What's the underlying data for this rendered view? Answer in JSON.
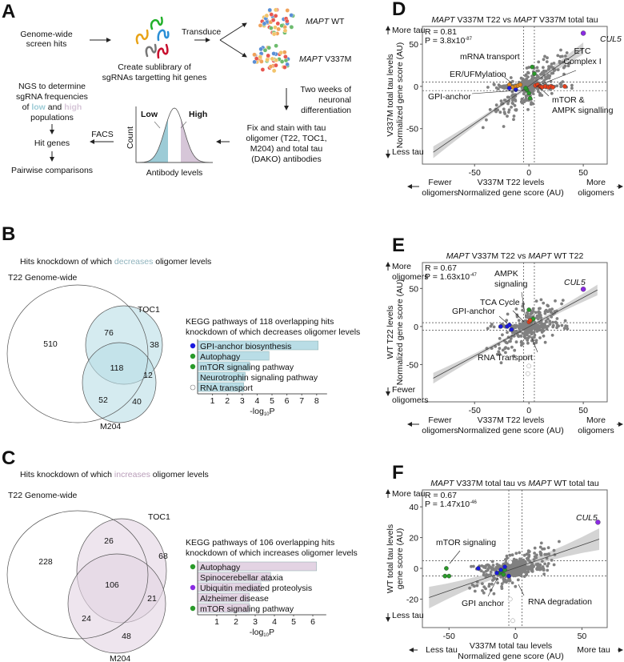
{
  "panelA": {
    "label": "A",
    "screen_hits": [
      "Genome-wide",
      "screen hits"
    ],
    "sublibrary": [
      "Create sublibrary of",
      "sgRNAs targetting hit genes"
    ],
    "transduce": "Transduce",
    "wt_gene": "MAPT",
    "wt_suffix": " WT",
    "mut_gene": "MAPT",
    "mut_suffix": " V337M",
    "differentiation": [
      "Two weeks of",
      "neuronal",
      "differentiation"
    ],
    "stain": [
      "Fix and stain with tau",
      "oligomer (T22, TOC1,",
      "M204) and total tau",
      "(DAKO) antibodies"
    ],
    "hist_low": "Low",
    "hist_high": "High",
    "hist_ylabel": "Count",
    "hist_xlabel": "Antibody levels",
    "facs": "FACS",
    "ngs": [
      "NGS to determine",
      "sgRNA frequencies"
    ],
    "ngs_line3": {
      "pre": "of ",
      "low": "low",
      "mid": " and ",
      "high": "high"
    },
    "ngs_line4": "populations",
    "hit_genes": "Hit genes",
    "pairwise": "Pairwise comparisons",
    "colors": {
      "low": "#9ccbd6",
      "high": "#d6c6d8"
    }
  },
  "panelB": {
    "label": "B",
    "title": {
      "pre": "Hits knockdown of which ",
      "key": "decreases",
      "post": " oligomer levels"
    },
    "key_color": "#8fb3bd",
    "set_main": "T22 Genome-wide",
    "set_a": "TOC1",
    "set_b": "M204",
    "counts": {
      "main_only": "510",
      "main_a": "76",
      "a_only": "38",
      "all": "118",
      "a_b": "12",
      "main_b": "52",
      "b_only": "40"
    },
    "kegg_title": [
      "KEGG pathways of 118 overlapping hits",
      "knockdown of which decreases oligomer levels"
    ],
    "bar_color": "#b9dde6",
    "chart_data": {
      "type": "bar",
      "orientation": "horizontal",
      "categories": [
        "GPI-anchor biosynthesis",
        "Autophagy",
        "mTOR signaling pathway",
        "Neurotrophin signaling pathway",
        "RNA transport"
      ],
      "values": [
        8.1,
        4.8,
        3.5,
        3.2,
        3.1
      ],
      "markers": [
        "#1a1adf",
        "#2a9a2a",
        "#2a9a2a",
        null,
        "open"
      ],
      "xticks": [
        "1",
        "2",
        "3",
        "4",
        "5",
        "6",
        "7",
        "8"
      ],
      "xlabel": "-log",
      "xlabel_sub": "10",
      "xlabel_post": "P",
      "xlim": [
        0,
        8.7
      ]
    }
  },
  "panelC": {
    "label": "C",
    "title": {
      "pre": "Hits knockdown of which ",
      "key": "increases",
      "post": " oligomer levels"
    },
    "key_color": "#b89cb8",
    "set_main": "T22 Genome-wide",
    "set_a": "TOC1",
    "set_b": "M204",
    "counts": {
      "main_only": "228",
      "main_a": "26",
      "a_only": "68",
      "all": "106",
      "a_b": "21",
      "main_b": "24",
      "b_only": "48"
    },
    "kegg_title": [
      "KEGG pathways of 106 overlapping hits",
      "knockdown of which increases oligomer levels"
    ],
    "bar_color": "#e3d3e3",
    "chart_data": {
      "type": "bar",
      "orientation": "horizontal",
      "categories": [
        "Autophagy",
        "Spinocerebellar ataxia",
        "Ubiquitin mediated proteolysis",
        "Alzheimer disease",
        "mTOR signaling pathway"
      ],
      "values": [
        6.2,
        3.8,
        3.3,
        2.7,
        2.7
      ],
      "markers": [
        "#2a9a2a",
        null,
        "#8a2be2",
        null,
        "#2a9a2a"
      ],
      "xticks": [
        "1",
        "2",
        "3",
        "4",
        "5",
        "6"
      ],
      "xlabel": "-log",
      "xlabel_sub": "10",
      "xlabel_post": "P",
      "xlim": [
        0,
        6.7
      ]
    }
  },
  "chart_data": [
    {
      "panel": "D",
      "type": "scatter",
      "title": {
        "g1": "MAPT",
        "t1": " V337M T22 vs ",
        "g2": "MAPT",
        "t2": " V337M total tau"
      },
      "stats": {
        "r": "R = 0.81",
        "p": "P = 3.8x10",
        "p_exp": "-87"
      },
      "xlabel": [
        "V337M T22 levels",
        "Normalized gene score (AU)"
      ],
      "ylabel": [
        "V337M total tau levels",
        "Normalized gene score (AU)"
      ],
      "x_left": [
        "Fewer",
        "oligomers"
      ],
      "x_right": [
        "More",
        "oligomers"
      ],
      "y_top": [
        "More tau"
      ],
      "y_bottom": [
        "Less tau"
      ],
      "xticks": [
        -50,
        0,
        50
      ],
      "yticks": [
        50,
        0,
        -50
      ],
      "xlim": [
        -98,
        72
      ],
      "ylim": [
        -92,
        71
      ],
      "thresholds": [
        -5,
        5
      ],
      "regression": [
        [
          -88,
          -78
        ],
        [
          50,
          45
        ]
      ],
      "highlights": [
        {
          "label": "CUL5",
          "italic": true,
          "color": "#8a2be2",
          "points": [
            [
              50,
              63
            ]
          ]
        },
        {
          "label": "mRNA transport",
          "color": "#111111",
          "points": []
        },
        {
          "label": "ER/UFMylation",
          "color": "#e08a1e",
          "points": [
            [
              -18,
              2
            ],
            [
              -15,
              -1
            ],
            [
              -12,
              0
            ],
            [
              -10,
              1
            ],
            [
              -8,
              2
            ]
          ]
        },
        {
          "label": "GPI-anchor",
          "color": "#1a1adf",
          "points": [
            [
              -18,
              -2
            ],
            [
              -12,
              -4
            ]
          ]
        },
        {
          "label": "ETC\nComplex I",
          "color": "#e8401c",
          "points": [
            [
              6,
              1
            ],
            [
              8,
              2
            ],
            [
              10,
              0
            ],
            [
              12,
              -1
            ],
            [
              15,
              0
            ],
            [
              18,
              -1
            ],
            [
              20,
              0
            ],
            [
              22,
              -1
            ],
            [
              33,
              0
            ]
          ]
        },
        {
          "label": "mTOR &\nAMPK signalling",
          "color": "#2a9a2a",
          "points": [
            [
              3,
              23
            ],
            [
              5,
              15
            ],
            [
              -2,
              -4
            ],
            [
              0,
              -8
            ],
            [
              1,
              -14
            ],
            [
              -3,
              -2
            ]
          ]
        }
      ]
    },
    {
      "panel": "E",
      "type": "scatter",
      "title": {
        "g1": "MAPT",
        "t1": " V337M T22 vs ",
        "g2": "MAPT",
        "t2": " WT T22"
      },
      "stats": {
        "r": "R = 0.67",
        "p": "P = 1.63x10",
        "p_exp": "-47"
      },
      "xlabel": [
        "V337M T22 levels",
        "Normalized gene score (AU)"
      ],
      "ylabel": [
        "WT T22 levels",
        "Normalized gene score (AU)"
      ],
      "x_left": [
        "Fewer",
        "oligomers"
      ],
      "x_right": [
        "More",
        "oligomers"
      ],
      "y_top": [
        "More",
        "oligomers"
      ],
      "y_bottom": [
        "Fewer",
        "oligomers"
      ],
      "xticks": [
        -50,
        0,
        50
      ],
      "yticks": [
        50,
        0,
        -50
      ],
      "xlim": [
        -98,
        72
      ],
      "ylim": [
        -99,
        84
      ],
      "thresholds": [
        -5,
        5
      ],
      "regression": [
        [
          -88,
          -68
        ],
        [
          63,
          48
        ]
      ],
      "highlights": [
        {
          "label": "CUL5",
          "italic": true,
          "color": "#8a2be2",
          "points": [
            [
              50,
              49
            ]
          ]
        },
        {
          "label": "AMPK\nsignaling",
          "color": "#2a9a2a",
          "points": [
            [
              0,
              22
            ],
            [
              2,
              8
            ],
            [
              4,
              10
            ]
          ]
        },
        {
          "label": "TCA Cycle",
          "color": "#e8401c",
          "points": [
            [
              0,
              6
            ],
            [
              1,
              8
            ]
          ]
        },
        {
          "label": "GPI-anchor",
          "color": "#1a1adf",
          "points": [
            [
              -26,
              0
            ],
            [
              -20,
              0
            ],
            [
              -18,
              2
            ],
            [
              -16,
              -4
            ]
          ]
        },
        {
          "label": "RNA Transport",
          "color": "#111111",
          "open": true,
          "points": [
            [
              0,
              -40
            ],
            [
              0,
              -52
            ],
            [
              -1,
              -62
            ]
          ]
        }
      ]
    },
    {
      "panel": "F",
      "type": "scatter",
      "title": {
        "g1": "MAPT",
        "t1": " V337M total tau vs ",
        "g2": "MAPT",
        "t2": " WT total tau"
      },
      "stats": {
        "r": "R = 0.67",
        "p": "P = 1.47x10",
        "p_exp": "-46"
      },
      "xlabel": [
        "V337M total tau levels",
        "Normalized gene score (AU)"
      ],
      "ylabel": [
        "WT total tau levels",
        "gene score (AU)"
      ],
      "x_left": [
        "Less tau"
      ],
      "x_right": [
        "More tau"
      ],
      "y_top": [
        "More tau"
      ],
      "y_bottom": [
        "Less tau"
      ],
      "xticks": [
        -50,
        0,
        50
      ],
      "yticks": [
        40,
        20,
        0,
        -20
      ],
      "xlim": [
        -70,
        69
      ],
      "ylim": [
        -38.5,
        51
      ],
      "thresholds": [
        -5,
        5
      ],
      "regression": [
        [
          -65,
          -19
        ],
        [
          63,
          19
        ]
      ],
      "highlights": [
        {
          "label": "CUL5",
          "italic": true,
          "color": "#8a2be2",
          "points": [
            [
              62,
              30
            ]
          ]
        },
        {
          "label": "mTOR signaling",
          "color": "#2a9a2a",
          "points": [
            [
              -52,
              0
            ],
            [
              -53,
              -5
            ],
            [
              -50,
              -5
            ],
            [
              -12,
              -3
            ],
            [
              -9,
              -4
            ],
            [
              -8,
              -1
            ],
            [
              -11,
              -2
            ]
          ]
        },
        {
          "label": "GPI anchor",
          "color": "#1a1adf",
          "points": [
            [
              -28,
              0
            ],
            [
              -14,
              -3
            ],
            [
              -11,
              -1
            ],
            [
              -8,
              1
            ],
            [
              -5,
              -5
            ]
          ]
        },
        {
          "label": "RNA degradation",
          "color": "#111111",
          "open": true,
          "points": [
            [
              -4,
              -20
            ],
            [
              -2,
              -34
            ],
            [
              -4,
              4
            ]
          ]
        }
      ]
    }
  ]
}
